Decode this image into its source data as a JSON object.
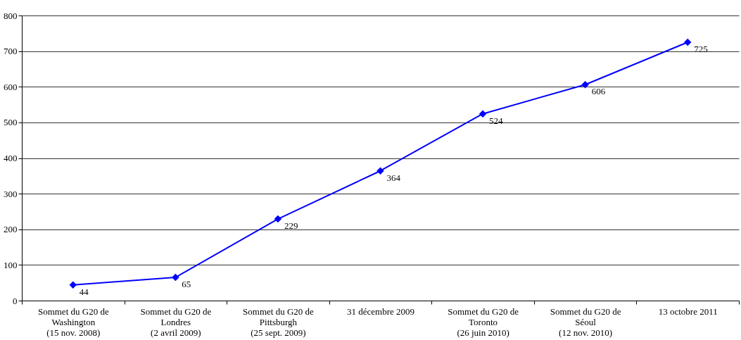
{
  "chart_data": {
    "type": "line",
    "categories": [
      "Sommet du G20 de Washington (15 nov. 2008)",
      "Sommet du G20 de Londres (2 avril 2009)",
      "Sommet du G20 de Pittsburgh (25 sept. 2009)",
      "31 décembre 2009",
      "Sommet du G20 de Toronto (26 juin 2010)",
      "Sommet du G20 de Séoul (12 nov. 2010)",
      "13 octobre 2011"
    ],
    "series": [
      {
        "color": "#0000ff",
        "values": [
          44,
          65,
          229,
          364,
          524,
          606,
          725
        ]
      }
    ],
    "ylim": [
      0,
      800
    ],
    "yticks": [
      0,
      100,
      200,
      300,
      400,
      500,
      600,
      700,
      800
    ],
    "grid": "y",
    "marker": "diamond",
    "line_style": "solid",
    "data_labels": true
  }
}
